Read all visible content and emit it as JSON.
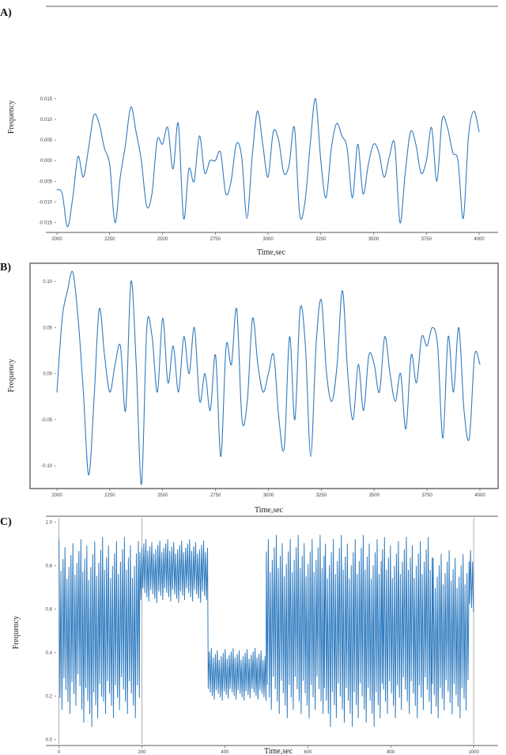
{
  "figure": {
    "accent_color": "#2f7bbf",
    "panel_labels": [
      "A)",
      "B)",
      "C)"
    ]
  },
  "chart_data": [
    {
      "type": "line",
      "panel": "A)",
      "title": "",
      "xlabel": "Time,sec",
      "ylabel": "Frequency",
      "xlim": [
        2000,
        4000
      ],
      "ylim": [
        -0.017,
        0.037
      ],
      "xticks": [
        2000,
        2250,
        2500,
        2750,
        3000,
        3250,
        3500,
        3750,
        4000
      ],
      "yticks": [
        -0.015,
        -0.01,
        -0.005,
        0.0,
        0.005,
        0.01,
        0.015
      ],
      "ytick_labels": [
        "-0.015",
        "-0.010",
        "-0.005",
        "0.000",
        "0.005",
        "0.010",
        "0.015"
      ],
      "color": "#2f7bbf",
      "x": [
        2000,
        2025,
        2050,
        2075,
        2100,
        2125,
        2150,
        2175,
        2200,
        2225,
        2250,
        2275,
        2300,
        2325,
        2350,
        2375,
        2400,
        2425,
        2450,
        2475,
        2500,
        2525,
        2550,
        2575,
        2600,
        2625,
        2650,
        2675,
        2700,
        2725,
        2750,
        2775,
        2800,
        2825,
        2850,
        2875,
        2900,
        2925,
        2950,
        2975,
        3000,
        3025,
        3050,
        3075,
        3100,
        3125,
        3150,
        3175,
        3200,
        3225,
        3250,
        3275,
        3300,
        3325,
        3350,
        3375,
        3400,
        3425,
        3450,
        3475,
        3500,
        3525,
        3550,
        3575,
        3600,
        3625,
        3650,
        3675,
        3700,
        3725,
        3750,
        3775,
        3800,
        3825,
        3850,
        3875,
        3900,
        3925,
        3950,
        3975,
        4000
      ],
      "y": [
        -0.007,
        -0.008,
        -0.016,
        -0.009,
        0.001,
        -0.004,
        0.003,
        0.011,
        0.009,
        0.003,
        -0.001,
        -0.015,
        -0.004,
        0.004,
        0.013,
        0.007,
        0.0,
        -0.011,
        -0.008,
        0.005,
        0.004,
        0.008,
        -0.002,
        0.009,
        -0.014,
        -0.002,
        -0.005,
        0.006,
        -0.003,
        0.0,
        0.0,
        0.002,
        -0.008,
        -0.005,
        0.004,
        0.001,
        -0.014,
        0.001,
        0.012,
        0.004,
        -0.004,
        0.007,
        0.005,
        -0.003,
        -0.001,
        0.008,
        -0.013,
        -0.01,
        0.004,
        0.015,
        0.0,
        -0.009,
        0.003,
        0.009,
        0.006,
        0.003,
        -0.009,
        0.004,
        -0.008,
        -0.001,
        0.004,
        0.002,
        -0.004,
        0.001,
        0.004,
        -0.015,
        -0.003,
        0.007,
        0.004,
        -0.003,
        0.0,
        0.008,
        -0.005,
        0.01,
        0.008,
        0.002,
        0.0,
        -0.014,
        0.006,
        0.012,
        0.007
      ]
    },
    {
      "type": "line",
      "panel": "B)",
      "title": "",
      "xlabel": "Time,sec",
      "ylabel": "Frequency",
      "xlim": [
        2000,
        4000
      ],
      "ylim": [
        -0.123,
        0.118
      ],
      "xticks": [
        2000,
        2250,
        2500,
        2750,
        3000,
        3250,
        3500,
        3750,
        4000
      ],
      "yticks": [
        -0.1,
        -0.05,
        0.0,
        0.05,
        0.1
      ],
      "ytick_labels": [
        "-0.10",
        "-0.05",
        "0.00",
        "0.05",
        "0.10"
      ],
      "color": "#2f7bbf",
      "x": [
        2000,
        2025,
        2050,
        2075,
        2100,
        2125,
        2150,
        2175,
        2200,
        2225,
        2250,
        2275,
        2300,
        2325,
        2350,
        2375,
        2400,
        2425,
        2450,
        2475,
        2500,
        2525,
        2550,
        2575,
        2600,
        2625,
        2650,
        2675,
        2700,
        2725,
        2750,
        2775,
        2800,
        2825,
        2850,
        2875,
        2900,
        2925,
        2950,
        2975,
        3000,
        3025,
        3050,
        3075,
        3100,
        3125,
        3150,
        3175,
        3200,
        3225,
        3250,
        3275,
        3300,
        3325,
        3350,
        3375,
        3400,
        3425,
        3450,
        3475,
        3500,
        3525,
        3550,
        3575,
        3600,
        3625,
        3650,
        3675,
        3700,
        3725,
        3750,
        3775,
        3800,
        3825,
        3850,
        3875,
        3900,
        3925,
        3950,
        3975,
        4000
      ],
      "y": [
        -0.02,
        0.06,
        0.09,
        0.11,
        0.06,
        -0.02,
        -0.11,
        -0.03,
        0.07,
        0.02,
        -0.02,
        0.01,
        0.03,
        -0.04,
        0.1,
        0.01,
        -0.12,
        0.05,
        0.04,
        -0.02,
        0.06,
        -0.01,
        0.03,
        -0.02,
        0.04,
        0.0,
        0.05,
        -0.03,
        0.0,
        -0.04,
        0.02,
        -0.09,
        0.03,
        0.01,
        0.07,
        -0.05,
        -0.03,
        0.06,
        0.01,
        -0.02,
        0.0,
        0.02,
        -0.05,
        -0.08,
        0.04,
        -0.05,
        0.07,
        0.03,
        -0.09,
        0.03,
        0.08,
        0.0,
        -0.03,
        0.01,
        0.09,
        0.0,
        -0.05,
        0.01,
        -0.04,
        0.02,
        0.01,
        -0.02,
        0.04,
        0.0,
        -0.03,
        0.0,
        -0.06,
        0.02,
        -0.01,
        0.04,
        0.03,
        0.05,
        0.03,
        -0.07,
        0.04,
        -0.02,
        0.05,
        -0.04,
        -0.07,
        0.02,
        0.01
      ]
    },
    {
      "type": "line",
      "panel": "C)",
      "title": "",
      "xlabel": "Time,sec",
      "ylabel": "Frequency",
      "xlim": [
        -5,
        1015
      ],
      "ylim": [
        -0.02,
        1.02
      ],
      "xticks": [
        0,
        200,
        400,
        600,
        800,
        1000
      ],
      "xtick_labels": [
        "0",
        "200",
        "400",
        "600",
        "800",
        "1000"
      ],
      "yticks": [
        0.0,
        0.2,
        0.4,
        0.6,
        0.8,
        1.0
      ],
      "ytick_labels": [
        "0.0",
        "0.2",
        "0.4",
        "0.6",
        "0.8",
        "1.0"
      ],
      "vertical_lines_x": [
        0,
        200,
        1000
      ],
      "color": "#2f7bbf",
      "segments": [
        {
          "x_range": [
            0,
            55
          ],
          "low": 0.12,
          "high": 0.92
        },
        {
          "x_range": [
            55,
            105
          ],
          "low": 0.06,
          "high": 0.93
        },
        {
          "x_range": [
            105,
            195
          ],
          "low": 0.1,
          "high": 0.93
        },
        {
          "x_range": [
            195,
            360
          ],
          "low": 0.63,
          "high": 0.92
        },
        {
          "x_range": [
            360,
            500
          ],
          "low": 0.18,
          "high": 0.42
        },
        {
          "x_range": [
            500,
            640
          ],
          "low": 0.1,
          "high": 0.94
        },
        {
          "x_range": [
            640,
            780
          ],
          "low": 0.06,
          "high": 0.94
        },
        {
          "x_range": [
            780,
            900
          ],
          "low": 0.1,
          "high": 0.93
        },
        {
          "x_range": [
            900,
            990
          ],
          "low": 0.1,
          "high": 0.87
        },
        {
          "x_range": [
            990,
            1000
          ],
          "low": 0.58,
          "high": 0.87
        }
      ]
    }
  ]
}
